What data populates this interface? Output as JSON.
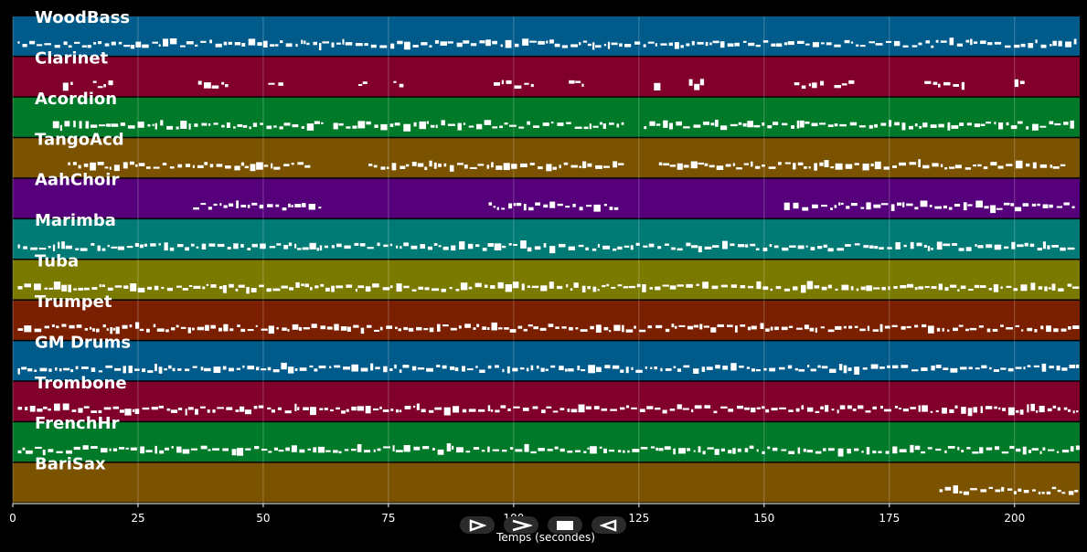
{
  "chart_data": {
    "type": "piano-roll",
    "xlabel": "Temps (secondes)",
    "xlim": [
      0,
      213
    ],
    "x_ticks": [
      0,
      25,
      50,
      75,
      100,
      125,
      150,
      175,
      200
    ],
    "tracks": [
      {
        "name": "WoodBass",
        "color": "#005a8a",
        "segments": [
          [
            1,
            213
          ]
        ]
      },
      {
        "name": "Clarinet",
        "color": "#80002b",
        "segments": [
          [
            10,
            12
          ],
          [
            16,
            20
          ],
          [
            37,
            43
          ],
          [
            51,
            54
          ],
          [
            69,
            71
          ],
          [
            76,
            78
          ],
          [
            96,
            104
          ],
          [
            111,
            114
          ],
          [
            128,
            130
          ],
          [
            135,
            138
          ],
          [
            156,
            162
          ],
          [
            164,
            168
          ],
          [
            182,
            190
          ],
          [
            200,
            202
          ]
        ]
      },
      {
        "name": "Acordion",
        "color": "#007a28",
        "segments": [
          [
            8,
            62
          ],
          [
            64,
            122
          ],
          [
            126,
            212
          ]
        ]
      },
      {
        "name": "TangoAcd",
        "color": "#7a5200",
        "segments": [
          [
            11,
            60
          ],
          [
            71,
            122
          ],
          [
            129,
            211
          ]
        ]
      },
      {
        "name": "AahChoir",
        "color": "#55007a",
        "segments": [
          [
            36,
            62
          ],
          [
            95,
            121
          ],
          [
            154,
            212
          ]
        ]
      },
      {
        "name": "Marimba",
        "color": "#007a75",
        "segments": [
          [
            1,
            213
          ]
        ]
      },
      {
        "name": "Tuba",
        "color": "#7a7a00",
        "segments": [
          [
            1,
            213
          ]
        ]
      },
      {
        "name": "Trumpet",
        "color": "#7a2000",
        "segments": [
          [
            1,
            213
          ]
        ]
      },
      {
        "name": "GM Drums",
        "color": "#005a8a",
        "segments": [
          [
            1,
            213
          ]
        ]
      },
      {
        "name": "Trombone",
        "color": "#80002b",
        "segments": [
          [
            1,
            213
          ]
        ]
      },
      {
        "name": "FrenchHr",
        "color": "#007a28",
        "segments": [
          [
            1,
            213
          ]
        ]
      },
      {
        "name": "BariSax",
        "color": "#7a5200",
        "segments": [
          [
            185,
            213
          ]
        ]
      }
    ]
  },
  "controls": [
    {
      "name": "play-button",
      "icon": "play-icon"
    },
    {
      "name": "fast-forward-button",
      "icon": "fast-forward-icon"
    },
    {
      "name": "stop-button",
      "icon": "stop-icon"
    },
    {
      "name": "rewind-button",
      "icon": "rewind-icon"
    }
  ]
}
